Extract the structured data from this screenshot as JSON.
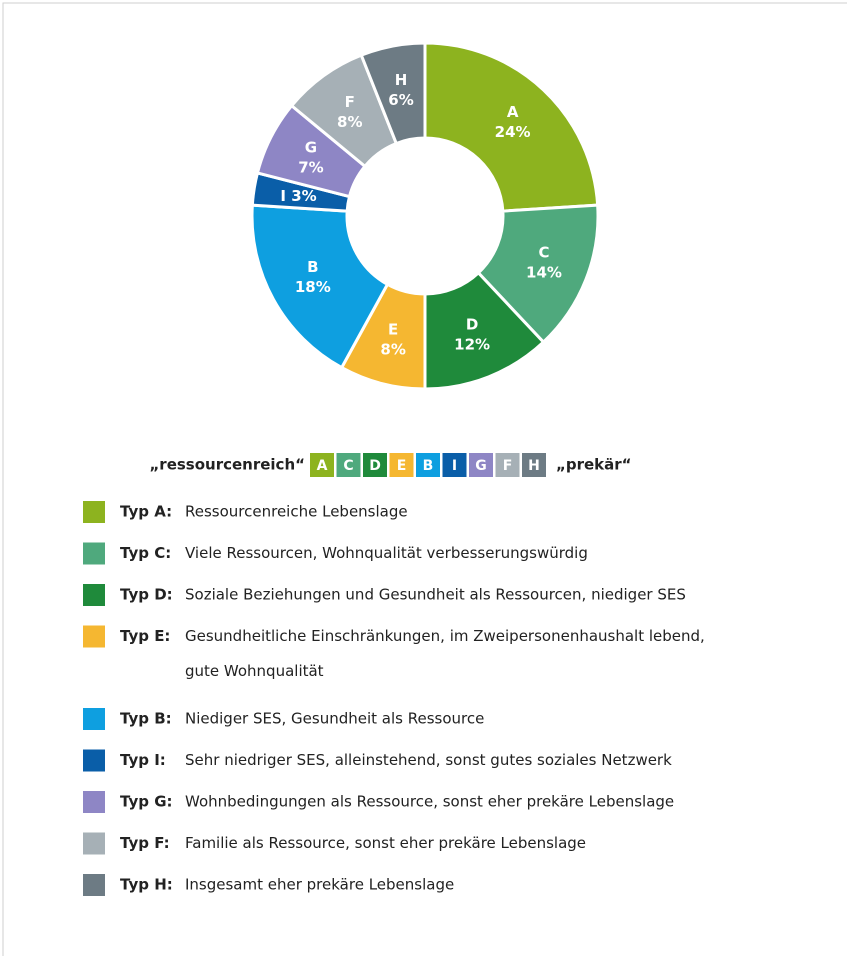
{
  "chart_data": {
    "type": "donut",
    "categories": [
      "A",
      "C",
      "D",
      "E",
      "B",
      "I",
      "G",
      "F",
      "H"
    ],
    "values": [
      24,
      14,
      12,
      8,
      18,
      3,
      7,
      8,
      6
    ],
    "value_labels": [
      "24%",
      "14%",
      "12%",
      "8%",
      "18%",
      "3%",
      "7%",
      "8%",
      "6%"
    ],
    "colors": [
      "#8db31f",
      "#4fa97d",
      "#1f8a3b",
      "#f5b731",
      "#0e9fe0",
      "#0a5ea8",
      "#8e86c5",
      "#a6b0b6",
      "#6d7b84"
    ],
    "scale_left": "„ressourcenreich“",
    "scale_right": "„prekär“",
    "legend": [
      {
        "label": "Typ A:",
        "lines": [
          "Ressourcenreiche Lebenslage"
        ]
      },
      {
        "label": "Typ C:",
        "lines": [
          "Viele Ressourcen, Wohnqualität verbesserungswürdig"
        ]
      },
      {
        "label": "Typ D:",
        "lines": [
          "Soziale Beziehungen und Gesundheit als Ressourcen, niediger SES"
        ]
      },
      {
        "label": "Typ E:",
        "lines": [
          "Gesundheitliche Einschränkungen, im Zweipersonenhaushalt lebend,",
          "gute Wohnqualität"
        ]
      },
      {
        "label": "Typ B:",
        "lines": [
          "Niediger SES, Gesundheit als Ressource"
        ]
      },
      {
        "label": "Typ  I:",
        "lines": [
          "Sehr niedriger SES, alleinstehend, sonst gutes soziales Netzwerk"
        ]
      },
      {
        "label": "Typ G:",
        "lines": [
          "Wohnbedingungen als Ressource, sonst eher prekäre Lebenslage"
        ]
      },
      {
        "label": "Typ F:",
        "lines": [
          "Familie als Ressource, sonst eher prekäre Lebenslage"
        ]
      },
      {
        "label": "Typ H:",
        "lines": [
          "Insgesamt eher prekäre Lebenslage"
        ]
      }
    ]
  }
}
